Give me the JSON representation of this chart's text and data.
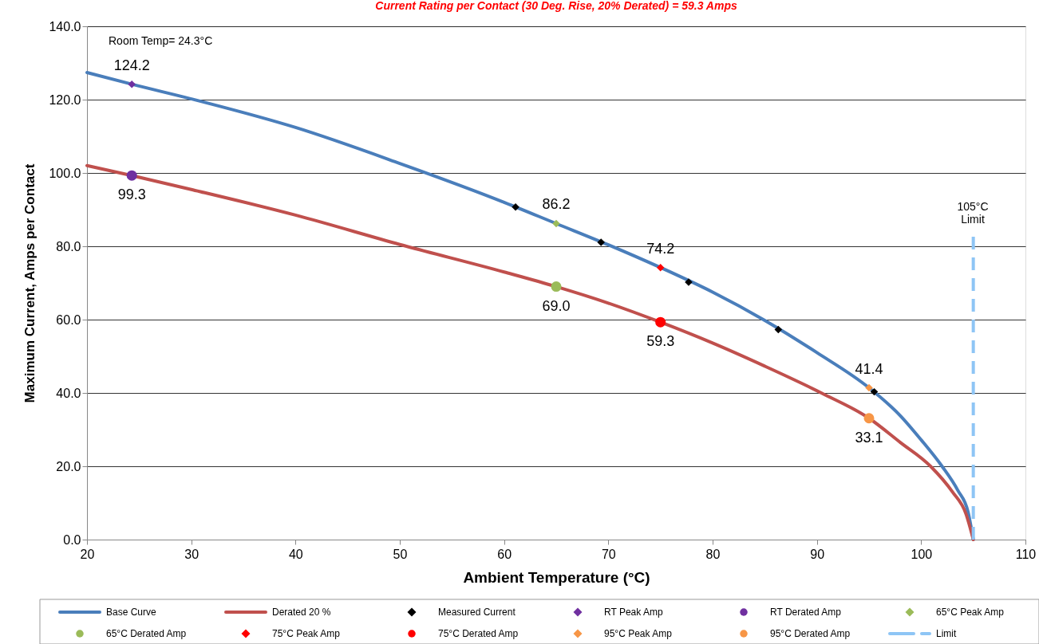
{
  "chart_data": {
    "type": "line",
    "title": "Current Rating per Contact (30 Deg. Rise, 20% Derated)  = 59.3 Amps",
    "xlabel": "Ambient Temperature (°C)",
    "ylabel": "Maximum Current, Amps per Contact",
    "xlim": [
      20,
      110
    ],
    "xticks": [
      20,
      30,
      40,
      50,
      60,
      70,
      80,
      90,
      100,
      110
    ],
    "ylim": [
      0,
      140
    ],
    "yticks": [
      {
        "value": 0,
        "label": "0.0"
      },
      {
        "value": 20,
        "label": "20.0"
      },
      {
        "value": 40,
        "label": "40.0"
      },
      {
        "value": 60,
        "label": "60.0"
      },
      {
        "value": 80,
        "label": "80.0"
      },
      {
        "value": 100,
        "label": "100.0"
      },
      {
        "value": 120,
        "label": "120.0"
      },
      {
        "value": 140,
        "label": "140.0"
      }
    ],
    "grid": "y",
    "legend": "bottom",
    "annotations": [
      "Room Temp= 24.3°C",
      "105°C\nLimit"
    ],
    "series": [
      {
        "name": "Base Curve",
        "color": "#4a7ebb",
        "x": [
          20,
          24.3,
          30,
          40,
          50,
          60,
          65,
          70,
          75,
          80,
          85,
          90,
          95,
          98,
          100,
          102,
          103.5,
          104.5,
          105
        ],
        "values": [
          127.4,
          124.2,
          120.2,
          112.4,
          102.6,
          92.0,
          86.2,
          80.4,
          74.2,
          67.5,
          59.8,
          51.0,
          41.4,
          33.8,
          27.2,
          20,
          13.5,
          7.5,
          0
        ]
      },
      {
        "name": "Derated 20 %",
        "color": "#c0504d",
        "x": [
          20,
          24.3,
          30,
          40,
          50,
          60,
          65,
          70,
          75,
          80,
          85,
          90.5,
          95,
          98,
          100.9,
          103,
          104.3,
          105
        ],
        "values": [
          102,
          99.3,
          95.5,
          88.5,
          80.5,
          73,
          69,
          64.5,
          59.3,
          53.6,
          47.3,
          39.9,
          33.1,
          26.5,
          20,
          13,
          7,
          0
        ]
      },
      {
        "name": "Measured Current",
        "type": "scatter",
        "marker": "diamond",
        "color": "#000000",
        "x": [
          61.1,
          69.3,
          77.7,
          86.3,
          95.5
        ],
        "values": [
          90.7,
          81.1,
          70.2,
          57.3,
          40.3
        ]
      },
      {
        "name": "RT Peak Amp",
        "type": "scatter",
        "marker": "diamond",
        "color": "#7030a0",
        "x": [
          24.3
        ],
        "values": [
          124.2
        ],
        "value_labels": [
          "124.2"
        ]
      },
      {
        "name": "RT Derated Amp",
        "type": "scatter",
        "marker": "circle",
        "color": "#7030a0",
        "x": [
          24.3
        ],
        "values": [
          99.3
        ],
        "value_labels": [
          "99.3"
        ]
      },
      {
        "name": "65°C Peak Amp",
        "type": "scatter",
        "marker": "diamond",
        "color": "#9bbb59",
        "x": [
          65
        ],
        "values": [
          86.2
        ],
        "value_labels": [
          "86.2"
        ]
      },
      {
        "name": "65°C Derated Amp",
        "type": "scatter",
        "marker": "circle",
        "color": "#9bbb59",
        "x": [
          65
        ],
        "values": [
          69.0
        ],
        "value_labels": [
          "69.0"
        ]
      },
      {
        "name": "75°C Peak Amp",
        "type": "scatter",
        "marker": "diamond",
        "color": "#ff0000",
        "x": [
          75
        ],
        "values": [
          74.2
        ],
        "value_labels": [
          "74.2"
        ]
      },
      {
        "name": "75°C Derated Amp",
        "type": "scatter",
        "marker": "circle",
        "color": "#ff0000",
        "x": [
          75
        ],
        "values": [
          59.3
        ],
        "value_labels": [
          "59.3"
        ]
      },
      {
        "name": "95°C Peak Amp",
        "type": "scatter",
        "marker": "diamond",
        "color": "#f79646",
        "x": [
          95
        ],
        "values": [
          41.4
        ],
        "value_labels": [
          "41.4"
        ]
      },
      {
        "name": "95°C Derated Amp",
        "type": "scatter",
        "marker": "circle",
        "color": "#f79646",
        "x": [
          95
        ],
        "values": [
          33.1
        ],
        "value_labels": [
          "33.1"
        ]
      },
      {
        "name": "Limit",
        "line_style": "dashed",
        "color": "#8ec5f5",
        "x": [
          105,
          105
        ],
        "values": [
          0,
          83
        ]
      }
    ]
  }
}
